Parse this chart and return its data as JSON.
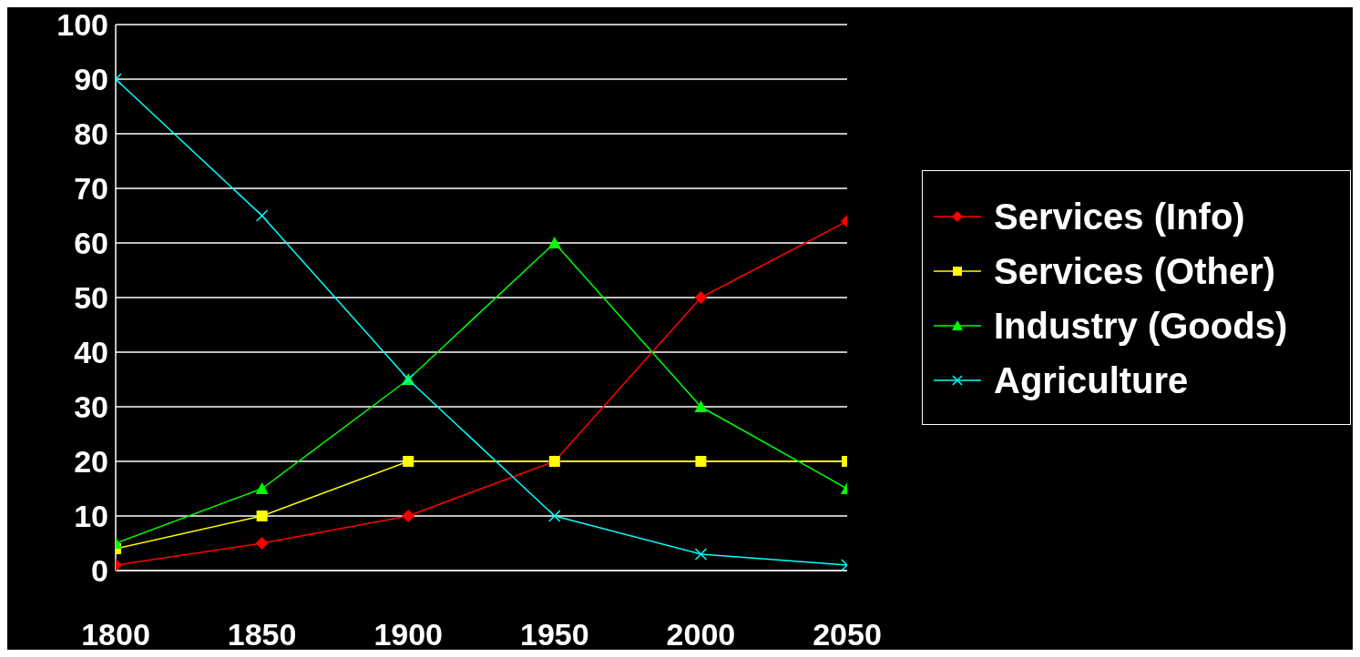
{
  "chart_data": {
    "type": "line",
    "x": [
      1800,
      1850,
      1900,
      1950,
      2000,
      2050
    ],
    "xlim": [
      1800,
      2050
    ],
    "xticks": [
      1800,
      1850,
      1900,
      1950,
      2000,
      2050
    ],
    "ylim": [
      0,
      100
    ],
    "yticks": [
      0,
      10,
      20,
      30,
      40,
      50,
      60,
      70,
      80,
      90,
      100
    ],
    "grid": "y",
    "legend": "right",
    "line_style": "solid",
    "series": [
      {
        "name": "Services (Info)",
        "color": "#ff0000",
        "marker": "diamond",
        "values": [
          1,
          5,
          10,
          20,
          50,
          64
        ]
      },
      {
        "name": "Services (Other)",
        "color": "#ffff00",
        "marker": "square",
        "values": [
          4,
          10,
          20,
          20,
          20,
          20
        ]
      },
      {
        "name": "Industry (Goods)",
        "color": "#00ff00",
        "marker": "triangle",
        "values": [
          5,
          15,
          35,
          60,
          30,
          15
        ]
      },
      {
        "name": "Agriculture",
        "color": "#00ffff",
        "marker": "cross",
        "values": [
          90,
          65,
          35,
          10,
          3,
          1
        ]
      }
    ]
  }
}
